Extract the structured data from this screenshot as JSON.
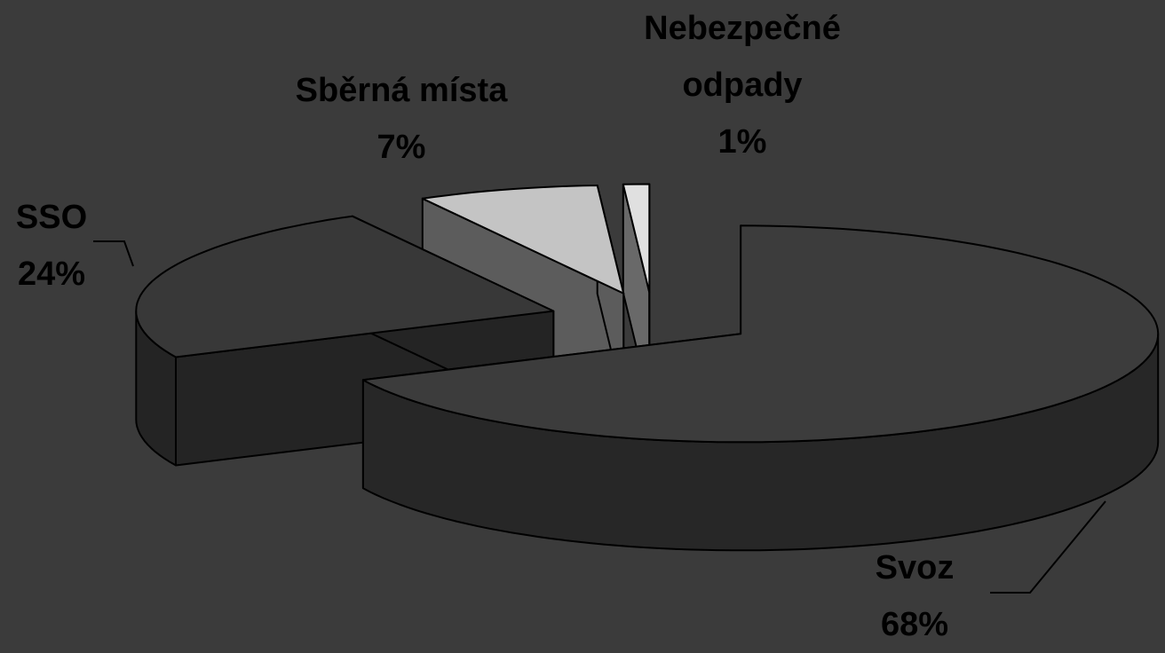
{
  "chart_data": {
    "type": "pie",
    "categories": [
      "Svoz",
      "SSO",
      "Sběrná místa",
      "Nebezpečné odpady"
    ],
    "values": [
      68,
      24,
      7,
      1
    ],
    "value_labels": [
      "68%",
      "24%",
      "7%",
      "1%"
    ],
    "colors": [
      "#3c3c3c",
      "#383838",
      "#c4c4c4",
      "#e0e0e0"
    ]
  }
}
